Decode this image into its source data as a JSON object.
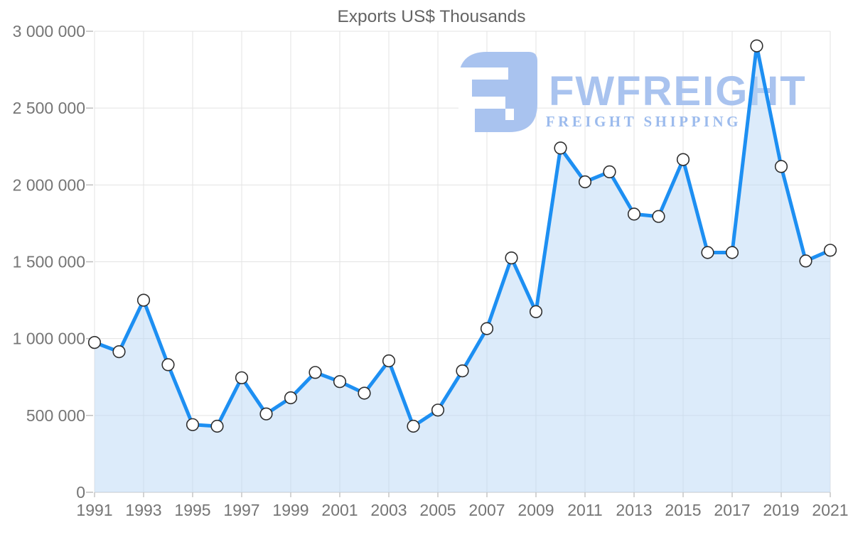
{
  "title": "Exports US$ Thousands",
  "watermark": {
    "brand": "FWFREIGHT",
    "tagline": "FREIGHT SHIPPING",
    "logo_color": "#a9c3ef"
  },
  "colors": {
    "line": "#1d8ff2",
    "area_fill_rgba": "rgba(185, 216, 246, 0.5)",
    "marker_fill": "#ffffff",
    "marker_stroke": "#2f2f2f",
    "grid": "#e3e3e3",
    "axis_line": "#c6c6c6",
    "tick": "#bdbdbd",
    "label": "#757575",
    "title": "#646464"
  },
  "chart_data": {
    "type": "line",
    "title": "Exports US$ Thousands",
    "xlabel": "",
    "ylabel": "",
    "legend_position": "none",
    "grid": true,
    "area_fill": true,
    "marker": "circle",
    "ylim": [
      0,
      3000000
    ],
    "x": [
      1991,
      1992,
      1993,
      1994,
      1995,
      1996,
      1997,
      1998,
      1999,
      2000,
      2001,
      2002,
      2003,
      2004,
      2005,
      2006,
      2007,
      2008,
      2009,
      2010,
      2011,
      2012,
      2013,
      2014,
      2015,
      2016,
      2017,
      2018,
      2019,
      2020,
      2021
    ],
    "values": [
      975000,
      915000,
      1250000,
      830000,
      440000,
      430000,
      745000,
      510000,
      615000,
      780000,
      720000,
      645000,
      855000,
      430000,
      535000,
      790000,
      1065000,
      1525000,
      1175000,
      2240000,
      2020000,
      2085000,
      1810000,
      1795000,
      2165000,
      1560000,
      1560000,
      2905000,
      2120000,
      1505000,
      1575000
    ],
    "x_ticks": [
      1991,
      1993,
      1995,
      1997,
      1999,
      2001,
      2003,
      2005,
      2007,
      2009,
      2011,
      2013,
      2015,
      2017,
      2019,
      2021
    ],
    "x_tick_labels": [
      "1991",
      "1993",
      "1995",
      "1997",
      "1999",
      "2001",
      "2003",
      "2005",
      "2007",
      "2009",
      "2011",
      "2013",
      "2015",
      "2017",
      "2019",
      "2021"
    ],
    "y_ticks": [
      0,
      500000,
      1000000,
      1500000,
      2000000,
      2500000,
      3000000
    ],
    "y_tick_labels": [
      "0",
      "500 000",
      "1 000 000",
      "1 500 000",
      "2 000 000",
      "2 500 000",
      "3 000 000"
    ]
  }
}
